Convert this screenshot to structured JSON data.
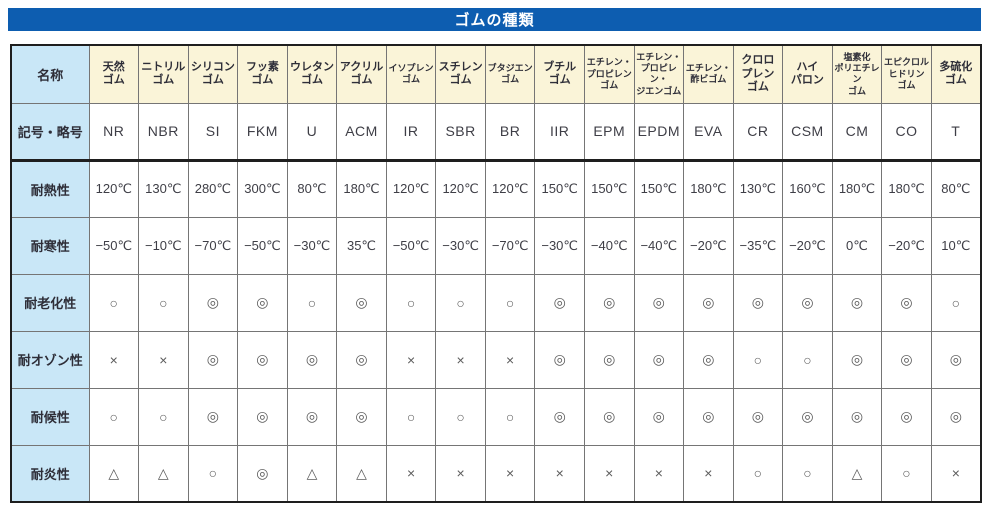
{
  "title": "ゴムの種類",
  "colors": {
    "title_bg": "#0d5db0",
    "title_text": "#ffffff",
    "row_header_bg": "#c9e7f7",
    "column_header_bg": "#faf4d8",
    "grid_line": "#757575",
    "outer_border": "#1e1e1e"
  },
  "table": {
    "corner_label": "名称",
    "column_names": [
      [
        "天然",
        "ゴム"
      ],
      [
        "ニトリル",
        "ゴム"
      ],
      [
        "シリコン",
        "ゴム"
      ],
      [
        "フッ素",
        "ゴム"
      ],
      [
        "ウレタン",
        "ゴム"
      ],
      [
        "アクリル",
        "ゴム"
      ],
      [
        "イソプレン",
        "ゴム"
      ],
      [
        "スチレン",
        "ゴム"
      ],
      [
        "ブタジエン",
        "ゴム"
      ],
      [
        "ブチル",
        "ゴム"
      ],
      [
        "エチレン・",
        "プロピレン",
        "ゴム"
      ],
      [
        "エチレン・",
        "プロピレン・",
        "ジエンゴム"
      ],
      [
        "エチレン・",
        "酢ビゴム"
      ],
      [
        "クロロ",
        "プレン",
        "ゴム"
      ],
      [
        "ハイ",
        "パロン"
      ],
      [
        "塩素化",
        "ポリエチレン",
        "ゴム"
      ],
      [
        "エピクロル",
        "ヒドリン",
        "ゴム"
      ],
      [
        "多硫化",
        "ゴム"
      ]
    ],
    "rows": [
      {
        "label": "記号・略号",
        "kind": "symbols",
        "values": [
          "NR",
          "NBR",
          "SI",
          "FKM",
          "U",
          "ACM",
          "IR",
          "SBR",
          "BR",
          "IIR",
          "EPM",
          "EPDM",
          "EVA",
          "CR",
          "CSM",
          "CM",
          "CO",
          "T"
        ]
      },
      {
        "label": "耐熱性",
        "kind": "temp",
        "values": [
          "120℃",
          "130℃",
          "280℃",
          "300℃",
          "80℃",
          "180℃",
          "120℃",
          "120℃",
          "120℃",
          "150℃",
          "150℃",
          "150℃",
          "180℃",
          "130℃",
          "160℃",
          "180℃",
          "180℃",
          "80℃"
        ]
      },
      {
        "label": "耐寒性",
        "kind": "temp",
        "values": [
          "−50℃",
          "−10℃",
          "−70℃",
          "−50℃",
          "−30℃",
          "35℃",
          "−50℃",
          "−30℃",
          "−70℃",
          "−30℃",
          "−40℃",
          "−40℃",
          "−20℃",
          "−35℃",
          "−20℃",
          "0℃",
          "−20℃",
          "10℃"
        ]
      },
      {
        "label": "耐老化性",
        "kind": "mark",
        "values": [
          "○",
          "○",
          "◎",
          "◎",
          "○",
          "◎",
          "○",
          "○",
          "○",
          "◎",
          "◎",
          "◎",
          "◎",
          "◎",
          "◎",
          "◎",
          "◎",
          "○"
        ]
      },
      {
        "label": "耐オゾン性",
        "kind": "mark",
        "values": [
          "×",
          "×",
          "◎",
          "◎",
          "◎",
          "◎",
          "×",
          "×",
          "×",
          "◎",
          "◎",
          "◎",
          "◎",
          "○",
          "○",
          "◎",
          "◎",
          "◎"
        ]
      },
      {
        "label": "耐候性",
        "kind": "mark",
        "values": [
          "○",
          "○",
          "◎",
          "◎",
          "◎",
          "◎",
          "○",
          "○",
          "○",
          "◎",
          "◎",
          "◎",
          "◎",
          "◎",
          "◎",
          "◎",
          "◎",
          "◎"
        ]
      },
      {
        "label": "耐炎性",
        "kind": "mark",
        "values": [
          "△",
          "△",
          "○",
          "◎",
          "△",
          "△",
          "×",
          "×",
          "×",
          "×",
          "×",
          "×",
          "×",
          "○",
          "○",
          "△",
          "○",
          "×"
        ]
      }
    ]
  }
}
